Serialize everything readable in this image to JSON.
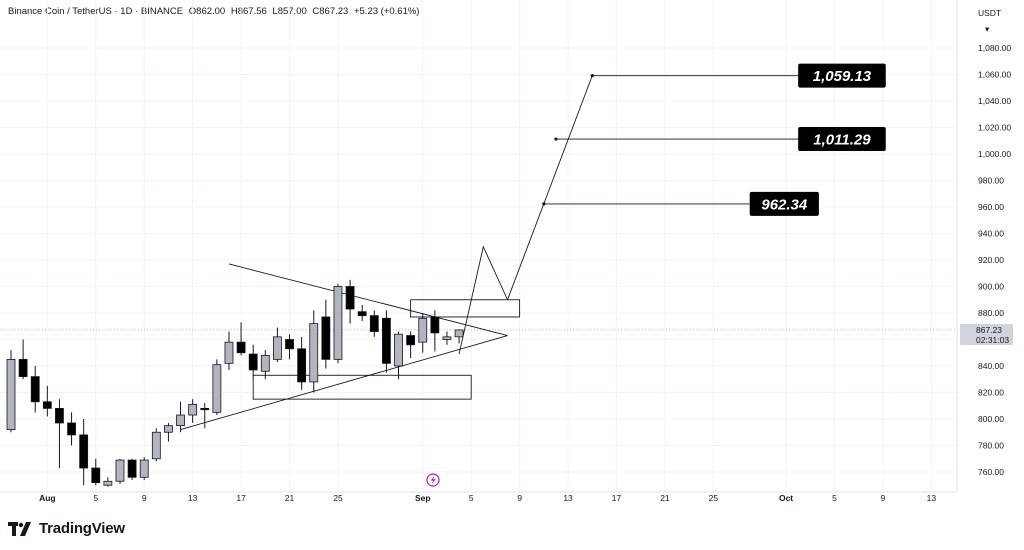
{
  "header": {
    "symbol": "Binance Coin / TetherUS · 1D · BINANCE",
    "open": "O862.00",
    "high": "H867.56",
    "low": "L857.00",
    "close": "C867.23",
    "change": "+5.23 (+0.61%)"
  },
  "currency": "USDT",
  "last_price": {
    "value": "867.23",
    "countdown": "02:31:03"
  },
  "brand": {
    "name": "TradingView"
  },
  "colors": {
    "up": "#b2b5be",
    "down": "#000000",
    "line": "#131722",
    "grid": "#f0f3fa"
  },
  "chart_data": {
    "type": "candlestick",
    "y_axis": {
      "min": 745,
      "max": 1095,
      "ticks": [
        760,
        780,
        800,
        820,
        840,
        860,
        880,
        900,
        920,
        940,
        960,
        980,
        1000,
        1020,
        1040,
        1060,
        1080
      ]
    },
    "y_tick_labels": [
      "760.00",
      "780.00",
      "800.00",
      "820.00",
      "840.00",
      "860.00",
      "880.00",
      "900.00",
      "920.00",
      "940.00",
      "960.00",
      "980.00",
      "1,000.00",
      "1,020.00",
      "1,040.00",
      "1,060.00",
      "1,080.00"
    ],
    "x_axis": {
      "start": "2025-07-29",
      "ticks": [
        {
          "date": "2025-08-01",
          "label": "Aug",
          "major": true
        },
        {
          "date": "2025-08-05",
          "label": "5"
        },
        {
          "date": "2025-08-09",
          "label": "9"
        },
        {
          "date": "2025-08-13",
          "label": "13"
        },
        {
          "date": "2025-08-17",
          "label": "17"
        },
        {
          "date": "2025-08-21",
          "label": "21"
        },
        {
          "date": "2025-08-25",
          "label": "25"
        },
        {
          "date": "2025-09-01",
          "label": "Sep",
          "major": true
        },
        {
          "date": "2025-09-05",
          "label": "5"
        },
        {
          "date": "2025-09-09",
          "label": "9"
        },
        {
          "date": "2025-09-13",
          "label": "13"
        },
        {
          "date": "2025-09-17",
          "label": "17"
        },
        {
          "date": "2025-09-21",
          "label": "21"
        },
        {
          "date": "2025-09-25",
          "label": "25"
        },
        {
          "date": "2025-10-01",
          "label": "Oct",
          "major": true
        },
        {
          "date": "2025-10-05",
          "label": "5"
        },
        {
          "date": "2025-10-09",
          "label": "9"
        },
        {
          "date": "2025-10-13",
          "label": "13"
        }
      ]
    },
    "candles": [
      {
        "date": "2025-07-29",
        "o": 792,
        "h": 852,
        "l": 790,
        "c": 845
      },
      {
        "date": "2025-07-30",
        "o": 845,
        "h": 860,
        "l": 830,
        "c": 832
      },
      {
        "date": "2025-07-31",
        "o": 832,
        "h": 840,
        "l": 805,
        "c": 813
      },
      {
        "date": "2025-08-01",
        "o": 813,
        "h": 825,
        "l": 802,
        "c": 808
      },
      {
        "date": "2025-08-02",
        "o": 808,
        "h": 815,
        "l": 763,
        "c": 797
      },
      {
        "date": "2025-08-03",
        "o": 797,
        "h": 805,
        "l": 780,
        "c": 788
      },
      {
        "date": "2025-08-04",
        "o": 788,
        "h": 800,
        "l": 750,
        "c": 763
      },
      {
        "date": "2025-08-05",
        "o": 763,
        "h": 770,
        "l": 750,
        "c": 752
      },
      {
        "date": "2025-08-06",
        "o": 750,
        "h": 756,
        "l": 749,
        "c": 753
      },
      {
        "date": "2025-08-07",
        "o": 753,
        "h": 770,
        "l": 751,
        "c": 769
      },
      {
        "date": "2025-08-08",
        "o": 769,
        "h": 770,
        "l": 754,
        "c": 756
      },
      {
        "date": "2025-08-09",
        "o": 756,
        "h": 771,
        "l": 754,
        "c": 769
      },
      {
        "date": "2025-08-10",
        "o": 770,
        "h": 793,
        "l": 768,
        "c": 790
      },
      {
        "date": "2025-08-11",
        "o": 790,
        "h": 797,
        "l": 783,
        "c": 795
      },
      {
        "date": "2025-08-12",
        "o": 795,
        "h": 813,
        "l": 790,
        "c": 803
      },
      {
        "date": "2025-08-13",
        "o": 803,
        "h": 815,
        "l": 797,
        "c": 811
      },
      {
        "date": "2025-08-14",
        "o": 808,
        "h": 812,
        "l": 793,
        "c": 807
      },
      {
        "date": "2025-08-15",
        "o": 805,
        "h": 845,
        "l": 803,
        "c": 841
      },
      {
        "date": "2025-08-16",
        "o": 842,
        "h": 866,
        "l": 837,
        "c": 858
      },
      {
        "date": "2025-08-17",
        "o": 858,
        "h": 873,
        "l": 848,
        "c": 850
      },
      {
        "date": "2025-08-18",
        "o": 849,
        "h": 856,
        "l": 832,
        "c": 837
      },
      {
        "date": "2025-08-19",
        "o": 836,
        "h": 852,
        "l": 830,
        "c": 848
      },
      {
        "date": "2025-08-20",
        "o": 845,
        "h": 869,
        "l": 843,
        "c": 862
      },
      {
        "date": "2025-08-21",
        "o": 860,
        "h": 864,
        "l": 845,
        "c": 853
      },
      {
        "date": "2025-08-22",
        "o": 853,
        "h": 862,
        "l": 822,
        "c": 828
      },
      {
        "date": "2025-08-23",
        "o": 828,
        "h": 882,
        "l": 820,
        "c": 872
      },
      {
        "date": "2025-08-24",
        "o": 877,
        "h": 890,
        "l": 838,
        "c": 845
      },
      {
        "date": "2025-08-25",
        "o": 845,
        "h": 902,
        "l": 842,
        "c": 900
      },
      {
        "date": "2025-08-26",
        "o": 900,
        "h": 905,
        "l": 872,
        "c": 883
      },
      {
        "date": "2025-08-27",
        "o": 881,
        "h": 886,
        "l": 874,
        "c": 878
      },
      {
        "date": "2025-08-28",
        "o": 878,
        "h": 882,
        "l": 862,
        "c": 866
      },
      {
        "date": "2025-08-29",
        "o": 876,
        "h": 882,
        "l": 835,
        "c": 842
      },
      {
        "date": "2025-08-30",
        "o": 840,
        "h": 866,
        "l": 830,
        "c": 864
      },
      {
        "date": "2025-08-31",
        "o": 863,
        "h": 866,
        "l": 846,
        "c": 856
      },
      {
        "date": "2025-09-01",
        "o": 858,
        "h": 880,
        "l": 850,
        "c": 876
      },
      {
        "date": "2025-09-02",
        "o": 877,
        "h": 882,
        "l": 851,
        "c": 865
      },
      {
        "date": "2025-09-03",
        "o": 860,
        "h": 866,
        "l": 856,
        "c": 862
      },
      {
        "date": "2025-09-04",
        "o": 862,
        "h": 867.56,
        "l": 857,
        "c": 867.23
      }
    ],
    "targets": [
      {
        "label": "962.34",
        "value": 962.34,
        "from": "2025-09-11",
        "to": "2025-09-28"
      },
      {
        "label": "1,011.29",
        "value": 1011.29,
        "from": "2025-09-12",
        "to": "2025-10-02"
      },
      {
        "label": "1,059.13",
        "value": 1059.13,
        "from": "2025-09-15",
        "to": "2025-10-02"
      }
    ],
    "annotations": {
      "triangle": {
        "upper": [
          {
            "date": "2025-08-16",
            "value": 917
          },
          {
            "date": "2025-09-08",
            "value": 863
          }
        ],
        "lower": [
          {
            "date": "2025-08-12",
            "value": 792
          },
          {
            "date": "2025-09-08",
            "value": 863
          }
        ]
      },
      "zones": [
        {
          "from": "2025-08-31",
          "to": "2025-09-09",
          "top": 890,
          "bottom": 877
        },
        {
          "from": "2025-08-18",
          "to": "2025-09-05",
          "top": 833,
          "bottom": 815
        }
      ],
      "path": [
        {
          "date": "2025-09-04",
          "value": 849
        },
        {
          "date": "2025-09-06",
          "value": 930
        },
        {
          "date": "2025-09-08",
          "value": 890
        },
        {
          "date": "2025-09-15",
          "value": 1059.13
        }
      ]
    }
  }
}
